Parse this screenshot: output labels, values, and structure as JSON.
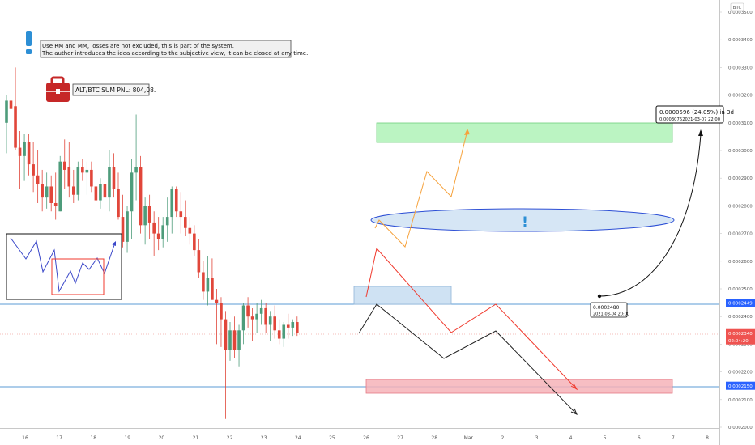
{
  "chart_data": {
    "type": "candlestick",
    "currency": "BTC",
    "y_ticks": [
      "0.0003500",
      "0.0003400",
      "0.0003300",
      "0.0003200",
      "0.0003100",
      "0.0003000",
      "0.0002900",
      "0.0002800",
      "0.0002700",
      "0.0002600",
      "0.0002500",
      "0.0002400",
      "0.0002300",
      "0.0002200",
      "0.0002100",
      "0.0002000"
    ],
    "ylim": [
      0.0002,
      0.00035
    ],
    "x_ticks": [
      "16",
      "17",
      "18",
      "19",
      "20",
      "21",
      "22",
      "23",
      "24",
      "25",
      "26",
      "27",
      "28",
      "Mar",
      "2",
      "3",
      "4",
      "5",
      "6",
      "7",
      "8"
    ],
    "price_tags": [
      {
        "text": "0.0002449",
        "value": 0.0002449,
        "color": "#2962ff"
      },
      {
        "text": "0.0002340",
        "value": 0.000234,
        "color": "#ef5350"
      },
      {
        "text": "02:04:20",
        "value": 0.000234,
        "color": "#ef5350"
      },
      {
        "text": "0.0002150",
        "value": 0.000215,
        "color": "#2962ff"
      }
    ],
    "candles": [
      [
        0.00031,
        0.00032,
        0.000299,
        0.000318
      ],
      [
        0.000318,
        0.000333,
        0.000312,
        0.000315
      ],
      [
        0.000316,
        0.00033,
        0.0003,
        0.000301
      ],
      [
        0.000301,
        0.000307,
        0.000286,
        0.000298
      ],
      [
        0.000298,
        0.000306,
        0.000289,
        0.000303
      ],
      [
        0.000303,
        0.000306,
        0.000291,
        0.000295
      ],
      [
        0.000295,
        0.000303,
        0.000285,
        0.000291
      ],
      [
        0.000291,
        0.0003,
        0.000281,
        0.000288
      ],
      [
        0.000288,
        0.000293,
        0.000278,
        0.000283
      ],
      [
        0.000283,
        0.000292,
        0.000279,
        0.000287
      ],
      [
        0.000287,
        0.000291,
        0.000278,
        0.000281
      ],
      [
        0.000281,
        0.000292,
        0.000275,
        0.00028
      ],
      [
        0.000278,
        0.000298,
        0.000278,
        0.000296
      ],
      [
        0.000296,
        0.000304,
        0.000286,
        0.000293
      ],
      [
        0.000294,
        0.000303,
        0.000283,
        0.000287
      ],
      [
        0.000287,
        0.000293,
        0.000281,
        0.000284
      ],
      [
        0.000284,
        0.000296,
        0.000282,
        0.000294
      ],
      [
        0.000294,
        0.000297,
        0.000289,
        0.000292
      ],
      [
        0.000292,
        0.000296,
        0.000284,
        0.000293
      ],
      [
        0.000293,
        0.000296,
        0.000285,
        0.000287
      ],
      [
        0.000287,
        0.000293,
        0.000279,
        0.000282
      ],
      [
        0.000282,
        0.00029,
        0.000279,
        0.000288
      ],
      [
        0.000288,
        0.000296,
        0.000282,
        0.000283
      ],
      [
        0.000283,
        0.0003,
        0.000278,
        0.000294
      ],
      [
        0.000294,
        0.000299,
        0.000283,
        0.000286
      ],
      [
        0.000286,
        0.000292,
        0.000275,
        0.000276
      ],
      [
        0.000276,
        0.000284,
        0.000265,
        0.000267
      ],
      [
        0.000267,
        0.00028,
        0.000263,
        0.000278
      ],
      [
        0.000278,
        0.000297,
        0.000268,
        0.000292
      ],
      [
        0.000292,
        0.000313,
        0.000282,
        0.000294
      ],
      [
        0.000294,
        0.000298,
        0.00027,
        0.000273
      ],
      [
        0.000273,
        0.000283,
        0.000266,
        0.00028
      ],
      [
        0.00028,
        0.000284,
        0.000268,
        0.000274
      ],
      [
        0.000274,
        0.000278,
        0.000262,
        0.00027
      ],
      [
        0.00027,
        0.000276,
        0.000264,
        0.000268
      ],
      [
        0.000268,
        0.000276,
        0.000265,
        0.000273
      ],
      [
        0.000273,
        0.000283,
        0.000267,
        0.000276
      ],
      [
        0.000276,
        0.000287,
        0.00027,
        0.000286
      ],
      [
        0.000286,
        0.000287,
        0.000276,
        0.000278
      ],
      [
        0.000278,
        0.000285,
        0.00027,
        0.000276
      ],
      [
        0.000276,
        0.000282,
        0.000269,
        0.000272
      ],
      [
        0.000272,
        0.000276,
        0.000266,
        0.00027
      ],
      [
        0.00027,
        0.000273,
        0.000262,
        0.000264
      ],
      [
        0.000264,
        0.000268,
        0.000254,
        0.000256
      ],
      [
        0.000256,
        0.00026,
        0.000246,
        0.000249
      ],
      [
        0.000249,
        0.000262,
        0.000244,
        0.000254
      ],
      [
        0.000254,
        0.000261,
        0.000246,
        0.000246
      ],
      [
        0.000246,
        0.00025,
        0.00023,
        0.000245
      ],
      [
        0.000245,
        0.000247,
        0.000229,
        0.000239
      ],
      [
        0.000239,
        0.000242,
        0.000203,
        0.000228
      ],
      [
        0.000228,
        0.000238,
        0.000224,
        0.000235
      ],
      [
        0.000235,
        0.00024,
        0.000225,
        0.000228
      ],
      [
        0.000228,
        0.000237,
        0.000222,
        0.000235
      ],
      [
        0.000235,
        0.000245,
        0.00023,
        0.000244
      ],
      [
        0.000244,
        0.000247,
        0.000236,
        0.00024
      ],
      [
        0.00024,
        0.000243,
        0.000231,
        0.000239
      ],
      [
        0.000239,
        0.000245,
        0.000234,
        0.000241
      ],
      [
        0.000241,
        0.000246,
        0.000237,
        0.000243
      ],
      [
        0.000243,
        0.000245,
        0.000234,
        0.000237
      ],
      [
        0.000237,
        0.000242,
        0.000231,
        0.00024
      ],
      [
        0.00024,
        0.000244,
        0.000232,
        0.000235
      ],
      [
        0.000235,
        0.000239,
        0.00023,
        0.000232
      ],
      [
        0.000232,
        0.000238,
        0.000229,
        0.000237
      ],
      [
        0.000237,
        0.000241,
        0.000232,
        0.000236
      ],
      [
        0.000236,
        0.000239,
        0.000233,
        0.000238
      ],
      [
        0.000238,
        0.00024,
        0.000233,
        0.000234
      ]
    ]
  },
  "notes": {
    "line1": "Use RM and MM, losses are not excluded, this is part of the system.",
    "line2": "The author introduces the idea according to the subjective view, it can be closed at any time.",
    "pnl": "ALT/BTC SUM PNL: 804,08."
  },
  "annotations": {
    "exclamation": "!",
    "target_line1": "0.0000596 (24.05%) in 3d",
    "target_line2_left": "0.0003076",
    "target_line2_right": "2021-03-07  22:00",
    "origin_line1": "0.0002480",
    "origin_line2": "2021-03-04 20:00"
  },
  "colors": {
    "up": "#4e9c7b",
    "down": "#e1463a",
    "blue_line": "#5b9bd5",
    "green_zone": "#9ef0a8",
    "red_zone": "#f6b3b9",
    "blue_zone": "#cfe2f3",
    "orange_path": "#f6a23c",
    "red_path": "#f03a2e",
    "black_path": "#222222",
    "accent_blue": "#2d8fd5",
    "briefcase": "#c62828"
  }
}
